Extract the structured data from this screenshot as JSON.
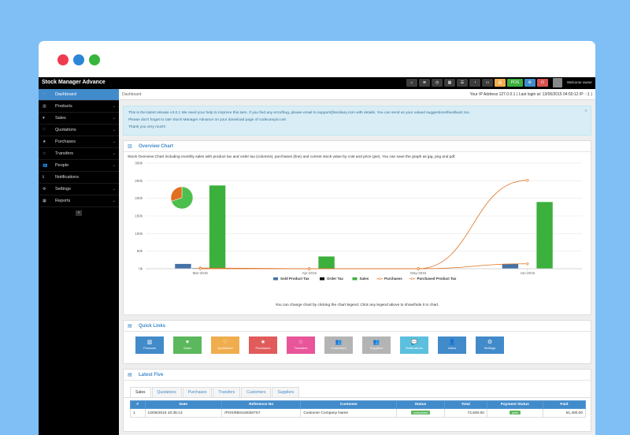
{
  "app": {
    "title": "Stock Manager Advance",
    "welcome": "Welcome owner"
  },
  "topbar": {
    "icons": [
      "home-icon",
      "sitemap-icon",
      "clock-icon",
      "calendar-icon",
      "list-icon",
      "dashboard-icon",
      "tag-icon",
      "bars-icon",
      "pos-icon",
      "settings-icon",
      "signout-icon"
    ],
    "pos_label": "POS"
  },
  "sidebar": {
    "items": [
      {
        "label": "Dashboard",
        "icon": "dashboard-icon",
        "active": true
      },
      {
        "label": "Products",
        "icon": "barcode-icon",
        "sub": true
      },
      {
        "label": "Sales",
        "icon": "heart-icon",
        "sub": true
      },
      {
        "label": "Quotations",
        "icon": "heart-o-icon",
        "sub": true
      },
      {
        "label": "Purchases",
        "icon": "star-icon",
        "sub": true
      },
      {
        "label": "Transfers",
        "icon": "star-o-icon",
        "sub": true
      },
      {
        "label": "People",
        "icon": "users-icon",
        "sub": true
      },
      {
        "label": "Notifications",
        "icon": "info-icon"
      },
      {
        "label": "Settings",
        "icon": "cog-icon",
        "sub": true
      },
      {
        "label": "Reports",
        "icon": "chart-icon",
        "sub": true
      }
    ],
    "collapse": "«"
  },
  "breadcrumb": {
    "text": "Dashboard",
    "ip": "Your IP Address 127.0.0.1 ( Last login at: 13/06/2015 04:50:12 IP: ::1 )"
  },
  "alert": {
    "line1": "This is the latest release v3.0.1 We need your help to improve this item. If you find any error/bug, please email to support@tecdiary.com with details. You can send us your valued suggestions/feedback too.",
    "line2": "Please don't forget to rate Stock Manager Advance on your download page of codecanyon.net",
    "line3": "Thank you very much!"
  },
  "overview": {
    "title": "Overview Chart",
    "description": "Stock Overview Chart including monthly sales with product tax and order tax (columns), purchases (line) and current stock value by cost and price (pie). You can save the graph as jpg, png and pdf.",
    "note": "You can change chart by clicking the chart legend. Click any legend above to show/hide it in chart."
  },
  "chart_data": {
    "type": "bar",
    "categories": [
      "Mar-2015",
      "Apr-2015",
      "May-2015",
      "Jun-2015"
    ],
    "ylim": [
      0,
      300000
    ],
    "yticks": [
      "0k",
      "50k",
      "100k",
      "150k",
      "200k",
      "250k",
      "300k"
    ],
    "series": [
      {
        "name": "Sold Product Tax",
        "type": "column",
        "color": "#4572a7",
        "values": [
          14000,
          0,
          0,
          14000
        ]
      },
      {
        "name": "Order Tax",
        "type": "column",
        "color": "#000000",
        "values": [
          2000,
          0,
          0,
          0
        ]
      },
      {
        "name": "Sales",
        "type": "column",
        "color": "#3cb03c",
        "values": [
          237000,
          35000,
          0,
          190000
        ]
      },
      {
        "name": "Purchases",
        "type": "line",
        "color": "#e07020",
        "values": [
          2000,
          0,
          0,
          251000
        ]
      },
      {
        "name": "Purchased Product Tax",
        "type": "line",
        "color": "#e07020",
        "values": [
          0,
          0,
          0,
          14000
        ]
      }
    ],
    "pie": {
      "slices": [
        {
          "name": "Stock Value by Price",
          "value": 70,
          "color": "#4cbf4c"
        },
        {
          "name": "Stock Value by Cost",
          "value": 30,
          "color": "#e07020"
        }
      ]
    }
  },
  "quick_links": {
    "title": "Quick Links",
    "items": [
      {
        "label": "Products",
        "color": "#428bca",
        "icon": "barcode-icon"
      },
      {
        "label": "Sales",
        "color": "#5cb85c",
        "icon": "heart-icon"
      },
      {
        "label": "Quotations",
        "color": "#f0ad4e",
        "icon": "heart-o-icon"
      },
      {
        "label": "Purchases",
        "color": "#e15b5b",
        "icon": "star-icon"
      },
      {
        "label": "Transfers",
        "color": "#e8559a",
        "icon": "star-o-icon"
      },
      {
        "label": "Customers",
        "color": "#b4b4b4",
        "icon": "users-icon"
      },
      {
        "label": "Suppliers",
        "color": "#b4b4b4",
        "icon": "users-icon"
      },
      {
        "label": "Notifications",
        "color": "#5bc0de",
        "icon": "comments-icon"
      },
      {
        "label": "Users",
        "color": "#428bca",
        "icon": "user-icon"
      },
      {
        "label": "Settings",
        "color": "#428bca",
        "icon": "cogs-icon"
      }
    ]
  },
  "latest_five": {
    "title": "Latest Five",
    "tabs": [
      "Sales",
      "Quotations",
      "Purchases",
      "Transfers",
      "Customers",
      "Suppliers"
    ],
    "columns": [
      "#",
      "Date",
      "Reference No",
      "Customer",
      "Status",
      "Total",
      "Payment Status",
      "Paid"
    ],
    "rows": [
      {
        "n": "1",
        "date": "13/06/2015 10:35:13",
        "ref": "/POS/9504180287S7",
        "customer": "Customer Company Name",
        "status": "completed",
        "total": "72,500.00",
        "payment": "paid",
        "paid": "61,400.00"
      }
    ]
  }
}
